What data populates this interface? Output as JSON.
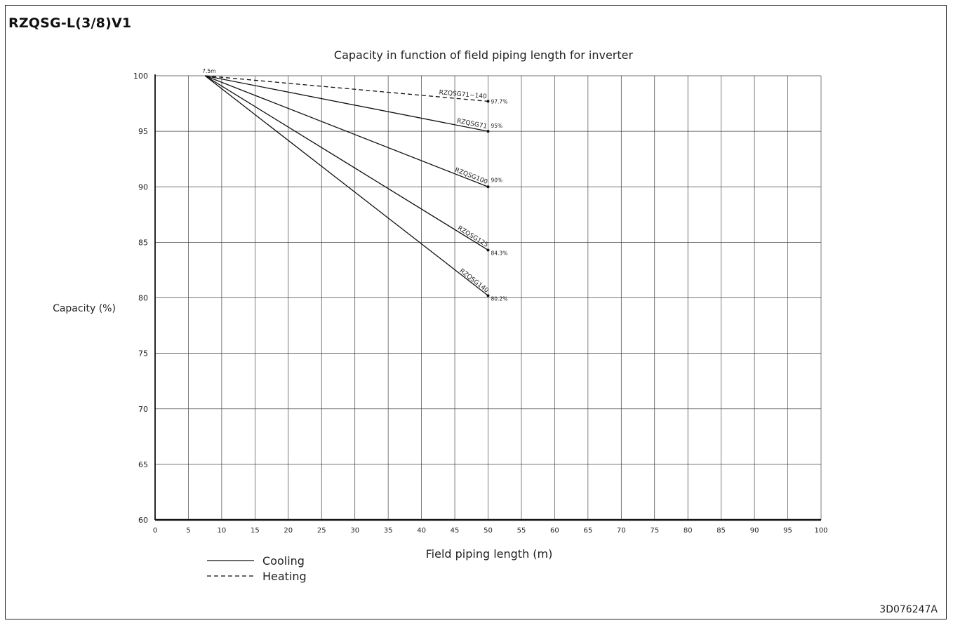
{
  "header": {
    "model": "RZQSG-L(3/8)V1"
  },
  "footer": {
    "doc_code": "3D076247A"
  },
  "chart_data": {
    "type": "line",
    "title": "Capacity in function of field piping length for inverter",
    "xlabel": "Field piping length  (m)",
    "ylabel": "Capacity (%)",
    "xlim": [
      0,
      100
    ],
    "ylim": [
      60,
      100
    ],
    "xticks": [
      0,
      5,
      10,
      15,
      20,
      25,
      30,
      35,
      40,
      45,
      50,
      55,
      60,
      65,
      70,
      75,
      80,
      85,
      90,
      95,
      100
    ],
    "yticks": [
      60,
      65,
      70,
      75,
      80,
      85,
      90,
      95,
      100
    ],
    "grid": true,
    "start_label": "7.5m",
    "series": [
      {
        "name": "RZQSG71~140",
        "mode": "Heating",
        "dash": true,
        "x": [
          7.5,
          50
        ],
        "y": [
          100,
          97.7
        ],
        "end_label": "97.7%"
      },
      {
        "name": "RZQSG71",
        "mode": "Cooling",
        "dash": false,
        "x": [
          7.5,
          50
        ],
        "y": [
          100,
          95
        ],
        "end_label": "95%"
      },
      {
        "name": "RZQSG100",
        "mode": "Cooling",
        "dash": false,
        "x": [
          7.5,
          50
        ],
        "y": [
          100,
          90
        ],
        "end_label": "90%"
      },
      {
        "name": "RZQSG125",
        "mode": "Cooling",
        "dash": false,
        "x": [
          7.5,
          50
        ],
        "y": [
          100,
          84.3
        ],
        "end_label": "84.3%"
      },
      {
        "name": "RZQSG140",
        "mode": "Cooling",
        "dash": false,
        "x": [
          7.5,
          50
        ],
        "y": [
          100,
          80.2
        ],
        "end_label": "80.2%"
      }
    ],
    "legend": {
      "placement": "bottom-left",
      "entries": [
        {
          "label": "Cooling",
          "dash": false
        },
        {
          "label": "Heating",
          "dash": true
        }
      ]
    },
    "line_color": "#111111",
    "grid_color": "#444444"
  }
}
